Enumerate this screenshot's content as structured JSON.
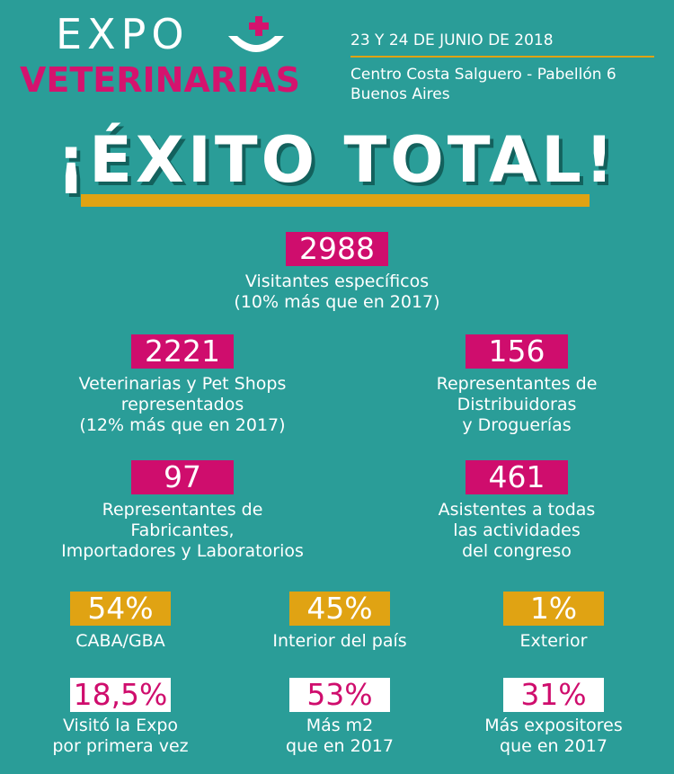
{
  "header": {
    "logo_top": "EXPO",
    "logo_bottom": "VETERINARIAS",
    "date": "23 Y 24 DE JUNIO DE 2018",
    "venue_lines": [
      "Centro Costa Salguero - Pabellón 6",
      "Buenos Aires"
    ]
  },
  "title": "¡ÉXITO TOTAL!",
  "stats": {
    "visitantes": {
      "value": "2988",
      "lines": [
        "Visitantes específicos",
        "(10% más que en 2017)"
      ]
    },
    "veterinarias": {
      "value": "2221",
      "lines": [
        "Veterinarias y Pet Shops",
        "representados",
        "(12% más que en 2017)"
      ]
    },
    "distribuidoras": {
      "value": "156",
      "lines": [
        "Representantes de",
        "Distribuidoras",
        "y Droguerías"
      ]
    },
    "fabricantes": {
      "value": "97",
      "lines": [
        "Representantes de",
        "Fabricantes,",
        "Importadores y Laboratorios"
      ]
    },
    "asistentes": {
      "value": "461",
      "lines": [
        "Asistentes a todas",
        "las actividades",
        "del congreso"
      ]
    },
    "caba": {
      "value": "54%",
      "lines": [
        "CABA/GBA"
      ]
    },
    "interior": {
      "value": "45%",
      "lines": [
        "Interior del país"
      ]
    },
    "exterior": {
      "value": "1%",
      "lines": [
        "Exterior"
      ]
    },
    "primera_vez": {
      "value": "18,5%",
      "lines": [
        "Visitó la Expo",
        "por primera vez"
      ]
    },
    "m2": {
      "value": "53%",
      "lines": [
        "Más m2",
        "que en 2017"
      ]
    },
    "expositores": {
      "value": "31%",
      "lines": [
        "Más expositores",
        "que en 2017"
      ]
    }
  },
  "colors": {
    "background": "#2a9d98",
    "brand_pink": "#cf0d6d",
    "gold": "#e0a313",
    "white": "#ffffff"
  },
  "icons": {
    "logo": "bowl-with-cross-icon"
  }
}
